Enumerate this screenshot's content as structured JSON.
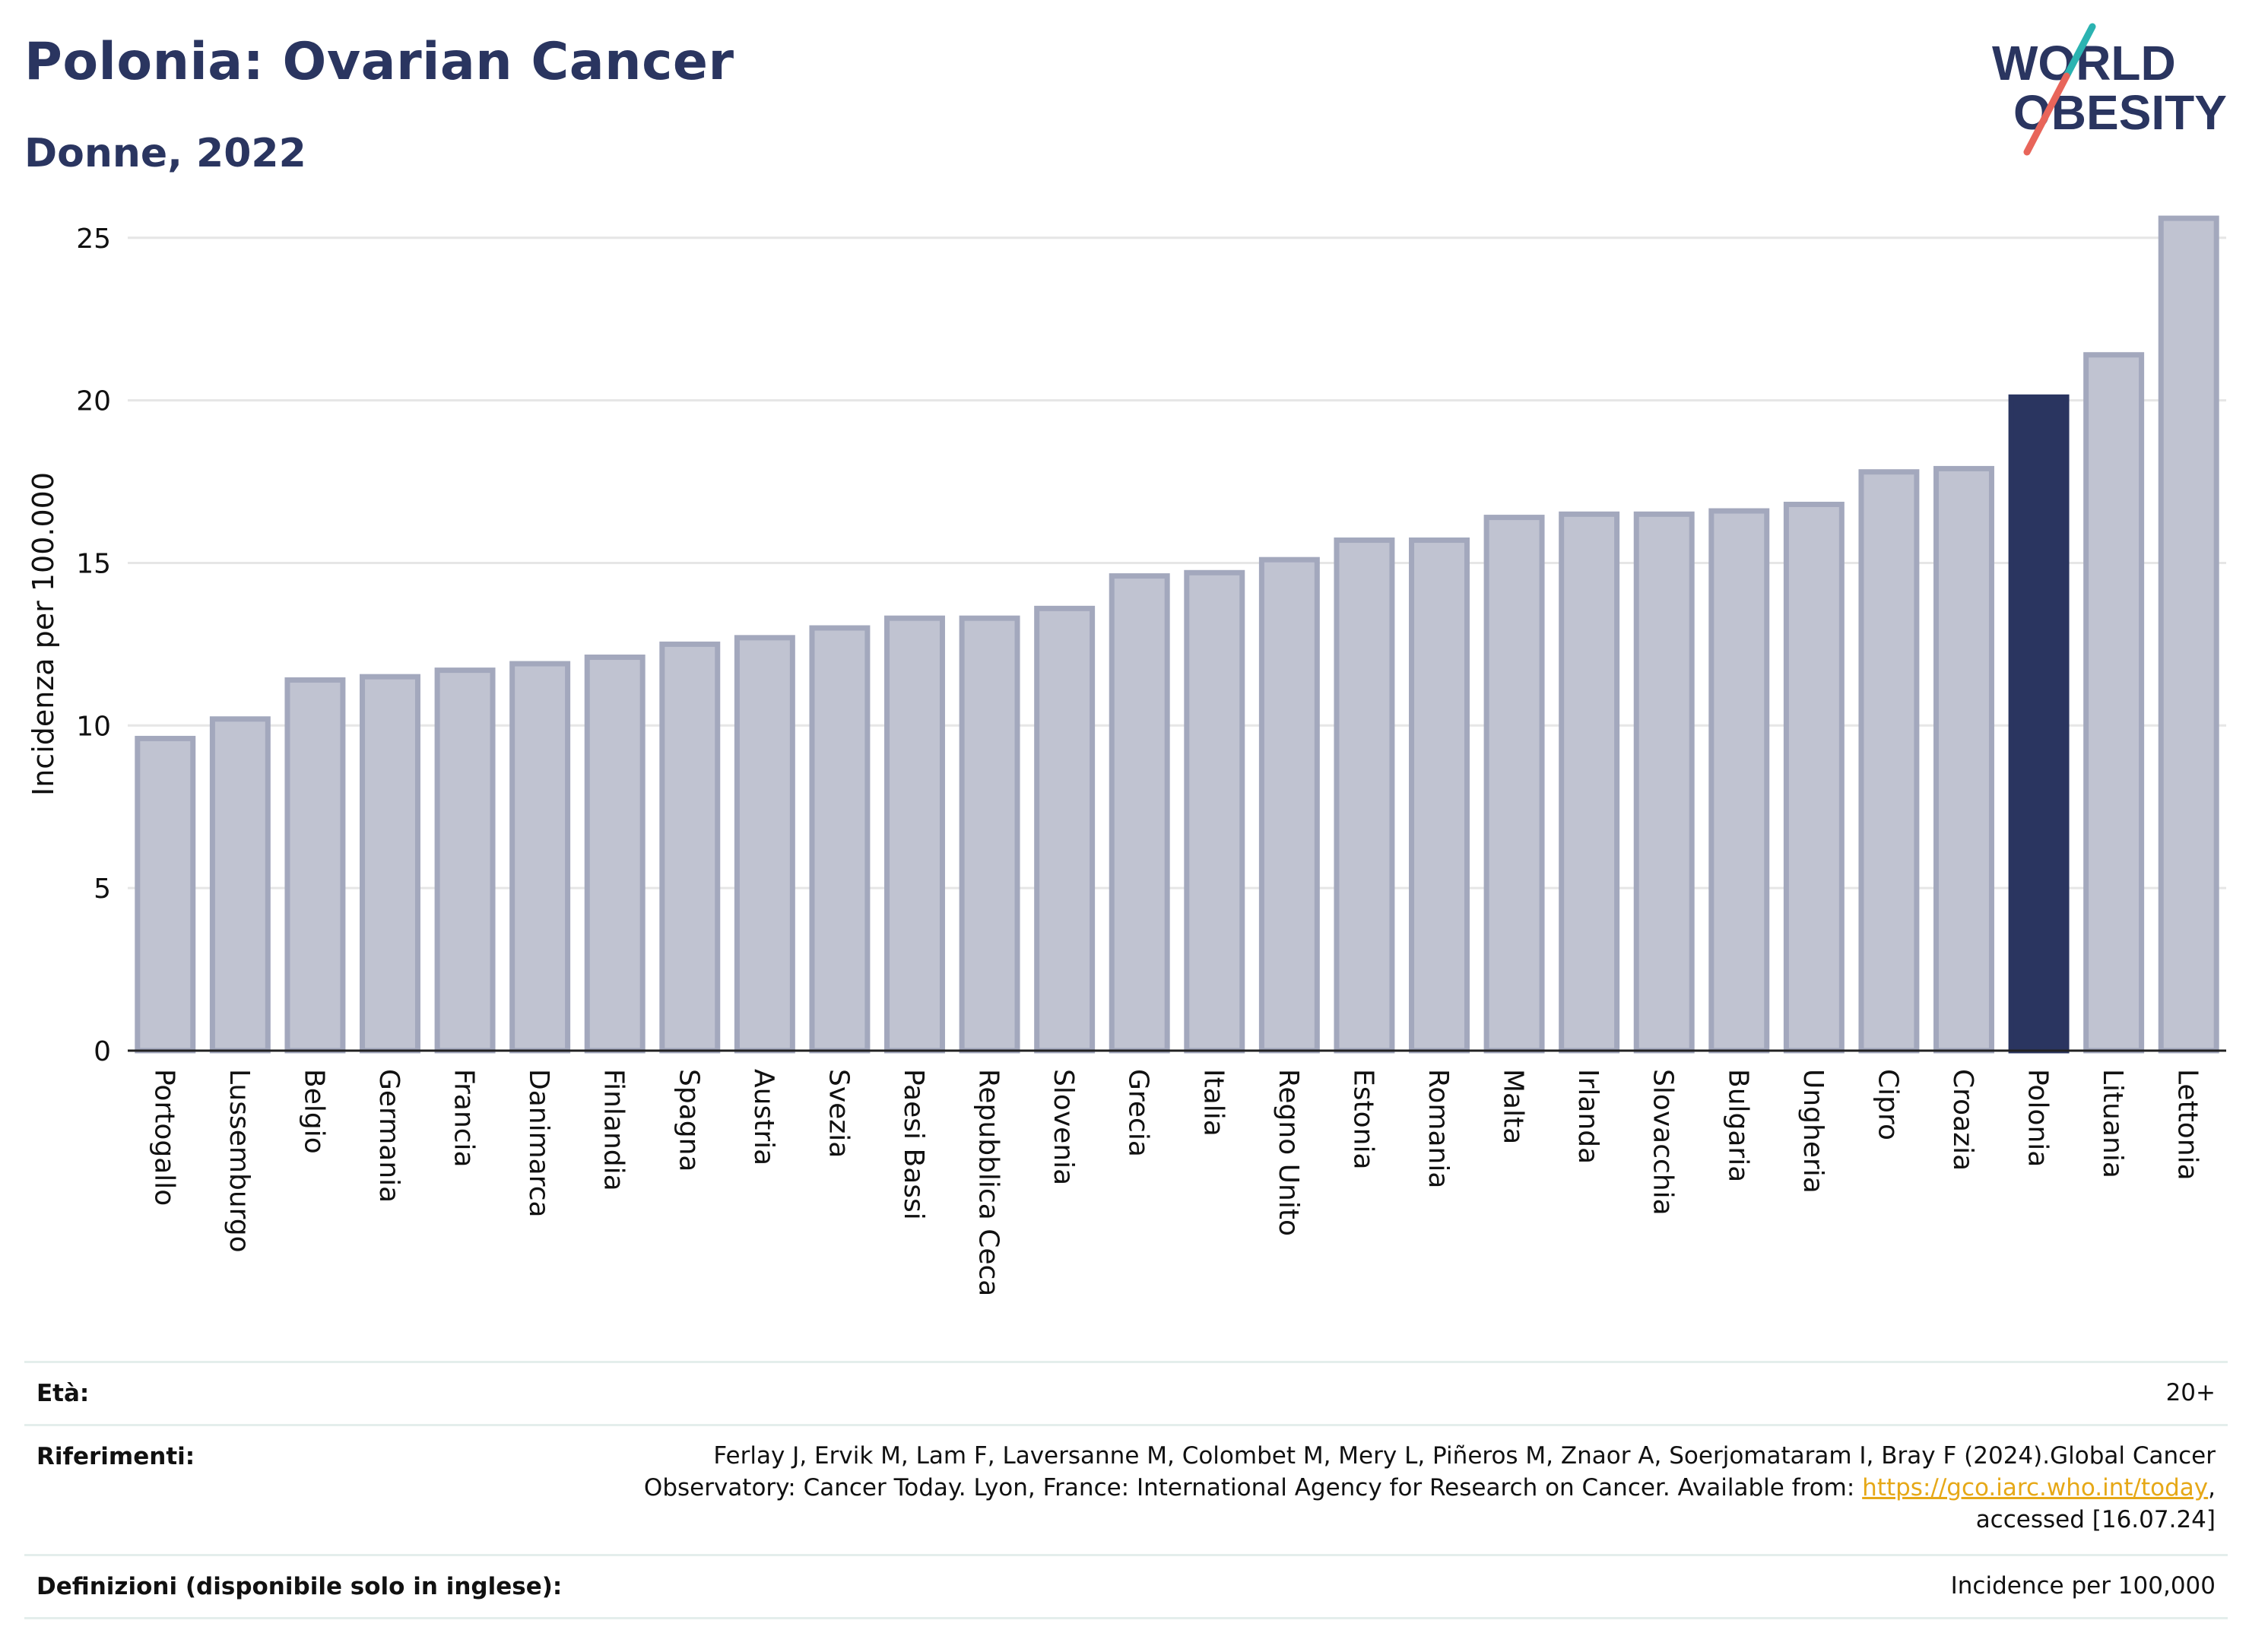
{
  "header": {
    "title": "Polonia: Ovarian Cancer",
    "subtitle": "Donne, 2022"
  },
  "logo": {
    "line1": "WORLD",
    "line2": "OBESITY",
    "accent_teal": "#2bb3b1",
    "accent_coral": "#e8655a",
    "text_color": "#2a3560"
  },
  "chart_data": {
    "type": "bar",
    "ylabel": "Incidenza per 100.000",
    "ylim": [
      0,
      26
    ],
    "yticks": [
      0,
      5,
      10,
      15,
      20,
      25
    ],
    "grid": true,
    "highlight": "Polonia",
    "colors": {
      "default": "#c0c3d1",
      "default_border": "#a3a8bd",
      "highlight": "#2a3560"
    },
    "categories": [
      "Portogallo",
      "Lussemburgo",
      "Belgio",
      "Germania",
      "Francia",
      "Danimarca",
      "Finlandia",
      "Spagna",
      "Austria",
      "Svezia",
      "Paesi Bassi",
      "Repubblica Ceca",
      "Slovenia",
      "Grecia",
      "Italia",
      "Regno Unito",
      "Estonia",
      "Romania",
      "Malta",
      "Irlanda",
      "Slovacchia",
      "Bulgaria",
      "Ungheria",
      "Cipro",
      "Croazia",
      "Polonia",
      "Lituania",
      "Lettonia"
    ],
    "values": [
      9.6,
      10.2,
      11.4,
      11.5,
      11.7,
      11.9,
      12.1,
      12.5,
      12.7,
      13.0,
      13.3,
      13.3,
      13.6,
      14.6,
      14.7,
      15.1,
      15.7,
      15.7,
      16.4,
      16.5,
      16.5,
      16.6,
      16.8,
      17.8,
      17.9,
      20.1,
      21.4,
      25.6
    ]
  },
  "meta": {
    "age_label": "Età:",
    "age_value": "20+",
    "ref_label": "Riferimenti:",
    "ref_line1": "Ferlay J, Ervik M, Lam F, Laversanne M, Colombet M, Mery L, Piñeros M, Znaor A, Soerjomataram I, Bray F (2024).Global Cancer",
    "ref_line2_pre": "Observatory: Cancer Today. Lyon, France: International Agency for Research on Cancer. Available from: ",
    "ref_link": "https://gco.iarc.who.int/today",
    "ref_line2_post": ",",
    "ref_line3": "accessed [16.07.24]",
    "def_label": "Definizioni (disponibile solo in inglese):",
    "def_value": "Incidence per 100,000"
  }
}
